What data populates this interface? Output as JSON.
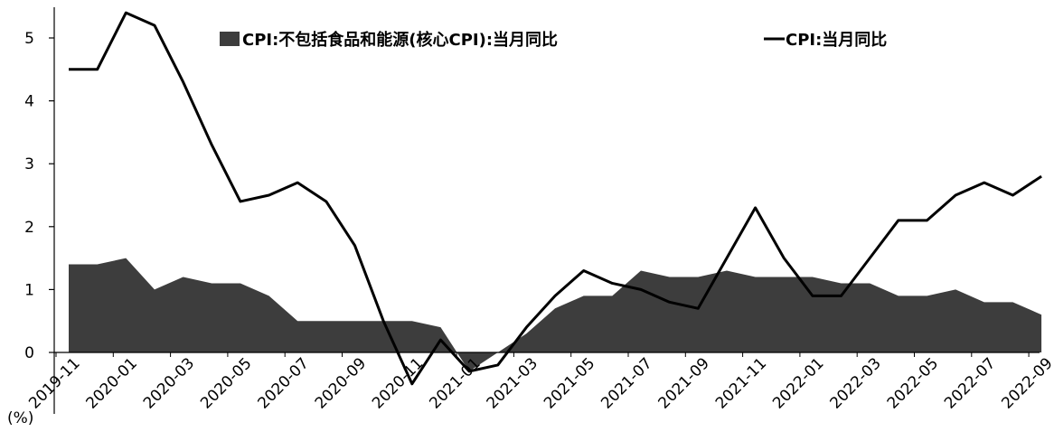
{
  "chart_data": {
    "type": "area",
    "title": "",
    "xlabel": "",
    "ylabel": "",
    "ylim": [
      -0.5,
      5.5
    ],
    "y_ticks": [
      0,
      1,
      2,
      3,
      4,
      5
    ],
    "grid": false,
    "legend_placement": "top",
    "x": [
      "2019-11",
      "2019-12",
      "2020-01",
      "2020-02",
      "2020-03",
      "2020-04",
      "2020-05",
      "2020-06",
      "2020-07",
      "2020-08",
      "2020-09",
      "2020-10",
      "2020-11",
      "2020-12",
      "2021-01",
      "2021-02",
      "2021-03",
      "2021-04",
      "2021-05",
      "2021-06",
      "2021-07",
      "2021-08",
      "2021-09",
      "2021-10",
      "2021-11",
      "2021-12",
      "2022-01",
      "2022-02",
      "2022-03",
      "2022-04",
      "2022-05",
      "2022-06",
      "2022-07",
      "2022-08",
      "2022-09"
    ],
    "x_tick_labels": [
      "2019-11",
      "2020-01",
      "2020-03",
      "2020-05",
      "2020-07",
      "2020-09",
      "2020-11",
      "2021-01",
      "2021-03",
      "2021-05",
      "2021-07",
      "2021-09",
      "2021-11",
      "2022-01",
      "2022-03",
      "2022-05",
      "2022-07",
      "2022-09"
    ],
    "unit_label": "(%)",
    "series": [
      {
        "name": "CPI:不包括食品和能源(核心CPI):当月同比",
        "type": "area",
        "color": "#3d3d3d",
        "values": [
          1.4,
          1.4,
          1.5,
          1.0,
          1.2,
          1.1,
          1.1,
          0.9,
          0.5,
          0.5,
          0.5,
          0.5,
          0.5,
          0.4,
          -0.3,
          0.0,
          0.3,
          0.7,
          0.9,
          0.9,
          1.3,
          1.2,
          1.2,
          1.3,
          1.2,
          1.2,
          1.2,
          1.1,
          1.1,
          0.9,
          0.9,
          1.0,
          0.8,
          0.8,
          0.6
        ]
      },
      {
        "name": "CPI:当月同比",
        "type": "line",
        "color": "#000000",
        "values": [
          4.5,
          4.5,
          5.4,
          5.2,
          4.3,
          3.3,
          2.4,
          2.5,
          2.7,
          2.4,
          1.7,
          0.5,
          -0.5,
          0.2,
          -0.3,
          -0.2,
          0.4,
          0.9,
          1.3,
          1.1,
          1.0,
          0.8,
          0.7,
          1.5,
          2.3,
          1.5,
          0.9,
          0.9,
          1.5,
          2.1,
          2.1,
          2.5,
          2.7,
          2.5,
          2.8
        ]
      }
    ]
  }
}
